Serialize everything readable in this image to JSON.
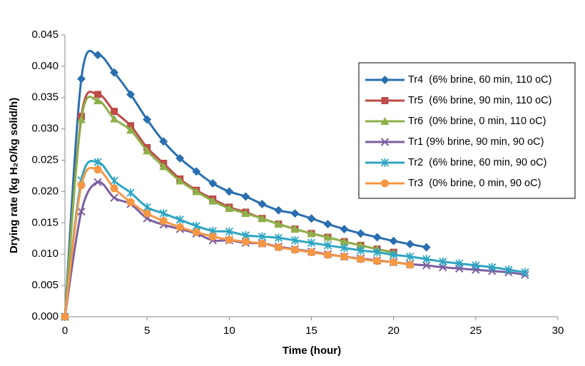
{
  "chart_data": {
    "type": "line",
    "xlabel": "Time (hour)",
    "ylabel": "Drying rate (kg H₂O/kg solid/h)",
    "xlim": [
      0,
      30
    ],
    "xticks": [
      0,
      5,
      10,
      15,
      20,
      25,
      30
    ],
    "ylim": [
      0,
      0.045
    ],
    "yticks": [
      {
        "value": 0,
        "label": "0.000"
      },
      {
        "value": 0.005,
        "label": "0.005"
      },
      {
        "value": 0.01,
        "label": "0.010"
      },
      {
        "value": 0.015,
        "label": "0.015"
      },
      {
        "value": 0.02,
        "label": "0.020"
      },
      {
        "value": 0.025,
        "label": "0.025"
      },
      {
        "value": 0.03,
        "label": "0.030"
      },
      {
        "value": 0.035,
        "label": "0.035"
      },
      {
        "value": 0.04,
        "label": "0.040"
      },
      {
        "value": 0.045,
        "label": "0.045"
      }
    ],
    "legend": "upper right",
    "series": [
      {
        "name": "Tr4  (6% brine, 60 min, 110 oC)",
        "color": "#2a6faf",
        "marker": "diamond",
        "x": [
          0,
          1,
          2,
          3,
          4,
          5,
          6,
          7,
          8,
          9,
          10,
          11,
          12,
          13,
          14,
          15,
          16,
          17,
          18,
          19,
          20,
          21,
          22
        ],
        "values": [
          0,
          0.038,
          0.0418,
          0.039,
          0.0355,
          0.0315,
          0.028,
          0.0253,
          0.0232,
          0.0213,
          0.02,
          0.0192,
          0.018,
          0.017,
          0.0165,
          0.0157,
          0.0148,
          0.014,
          0.0133,
          0.0127,
          0.0121,
          0.0116,
          0.0111
        ]
      },
      {
        "name": "Tr5  (6% brine, 90 min, 110 oC)",
        "color": "#be4b48",
        "marker": "square",
        "x": [
          0,
          1,
          2,
          3,
          4,
          5,
          6,
          7,
          8,
          9,
          10,
          11,
          12,
          13,
          14,
          15,
          16,
          17,
          18,
          19,
          20
        ],
        "values": [
          0,
          0.032,
          0.0355,
          0.0328,
          0.0305,
          0.027,
          0.0245,
          0.022,
          0.0202,
          0.0188,
          0.0175,
          0.0167,
          0.0157,
          0.0148,
          0.014,
          0.0133,
          0.0127,
          0.012,
          0.0114,
          0.0108,
          0.0103
        ]
      },
      {
        "name": "Tr6  (0% brine, 0 min, 110 oC)",
        "color": "#8cb149",
        "marker": "triangle",
        "x": [
          0,
          1,
          2,
          3,
          4,
          5,
          6,
          7,
          8,
          9,
          10,
          11,
          12,
          13,
          14,
          15,
          16,
          17,
          18,
          19,
          20
        ],
        "values": [
          0,
          0.0315,
          0.0345,
          0.0316,
          0.0298,
          0.0265,
          0.024,
          0.0217,
          0.02,
          0.0185,
          0.0173,
          0.0165,
          0.0157,
          0.0148,
          0.014,
          0.0133,
          0.0127,
          0.012,
          0.0114,
          0.0108,
          0.0102
        ]
      },
      {
        "name": "Tr1 (9% brine, 90 min, 90 oC)",
        "color": "#7d5fa0",
        "marker": "x",
        "x": [
          0,
          1,
          2,
          3,
          4,
          5,
          6,
          7,
          8,
          9,
          10,
          11,
          12,
          13,
          14,
          15,
          16,
          17,
          18,
          19,
          20,
          21,
          22,
          23,
          24,
          25,
          26,
          27,
          28
        ],
        "values": [
          0,
          0.0168,
          0.0215,
          0.019,
          0.018,
          0.0157,
          0.0147,
          0.014,
          0.0133,
          0.0122,
          0.0122,
          0.0118,
          0.0117,
          0.0112,
          0.0108,
          0.0104,
          0.01,
          0.0096,
          0.0093,
          0.009,
          0.0087,
          0.0084,
          0.0082,
          0.0079,
          0.0077,
          0.0075,
          0.0073,
          0.0071,
          0.0067
        ]
      },
      {
        "name": "Tr2  (6% brine, 60 min, 90 oC)",
        "color": "#2fa5c2",
        "marker": "star",
        "x": [
          0,
          1,
          2,
          3,
          4,
          5,
          6,
          7,
          8,
          9,
          10,
          11,
          12,
          13,
          14,
          15,
          16,
          17,
          18,
          19,
          20,
          21,
          22,
          23,
          24,
          25,
          26,
          27,
          28
        ],
        "values": [
          0,
          0.0218,
          0.0247,
          0.0217,
          0.0198,
          0.0175,
          0.0165,
          0.0155,
          0.0145,
          0.0137,
          0.0136,
          0.013,
          0.0128,
          0.0126,
          0.0122,
          0.0118,
          0.0114,
          0.011,
          0.0106,
          0.0103,
          0.0099,
          0.0096,
          0.0092,
          0.0088,
          0.0085,
          0.0082,
          0.0079,
          0.0075,
          0.0071
        ]
      },
      {
        "name": "Tr3  (0% brine, 0 min, 90 oC)",
        "color": "#f59745",
        "marker": "circle",
        "x": [
          0,
          1,
          2,
          3,
          4,
          5,
          6,
          7,
          8,
          9,
          10,
          11,
          12,
          13,
          14,
          15,
          16,
          17,
          18,
          19,
          20,
          21
        ],
        "values": [
          0,
          0.021,
          0.0235,
          0.0205,
          0.0183,
          0.0165,
          0.0153,
          0.0143,
          0.0135,
          0.0128,
          0.0123,
          0.012,
          0.0117,
          0.0111,
          0.0107,
          0.0103,
          0.0099,
          0.0096,
          0.0092,
          0.0089,
          0.0087,
          0.0083
        ]
      }
    ]
  }
}
